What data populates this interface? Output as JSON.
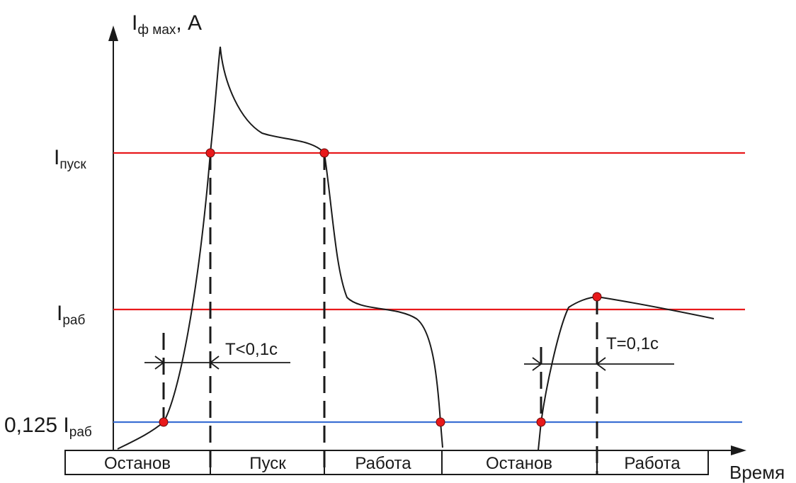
{
  "y_axis": {
    "label_main": "I",
    "label_sub": "ф мах",
    "label_unit": ", A"
  },
  "x_axis": {
    "label": "Время"
  },
  "levels": {
    "start": {
      "label_main": "I",
      "label_sub": "пуск",
      "color": "#e8191b"
    },
    "work": {
      "label_main": "I",
      "label_sub": "раб",
      "color": "#e8191b"
    },
    "low": {
      "label_main": "0,125 I",
      "label_sub": "раб",
      "color": "#3b6fd4"
    }
  },
  "intervals": {
    "first": {
      "label": "T<0,1c"
    },
    "second": {
      "label": "T=0,1c"
    }
  },
  "states": [
    {
      "label": "Останов"
    },
    {
      "label": "Пуск"
    },
    {
      "label": "Работа"
    },
    {
      "label": "Останов"
    },
    {
      "label": "Работа"
    }
  ],
  "colors": {
    "curve": "#1a1a1a",
    "marker": "#e8191b",
    "axis": "#1a1a1a"
  }
}
